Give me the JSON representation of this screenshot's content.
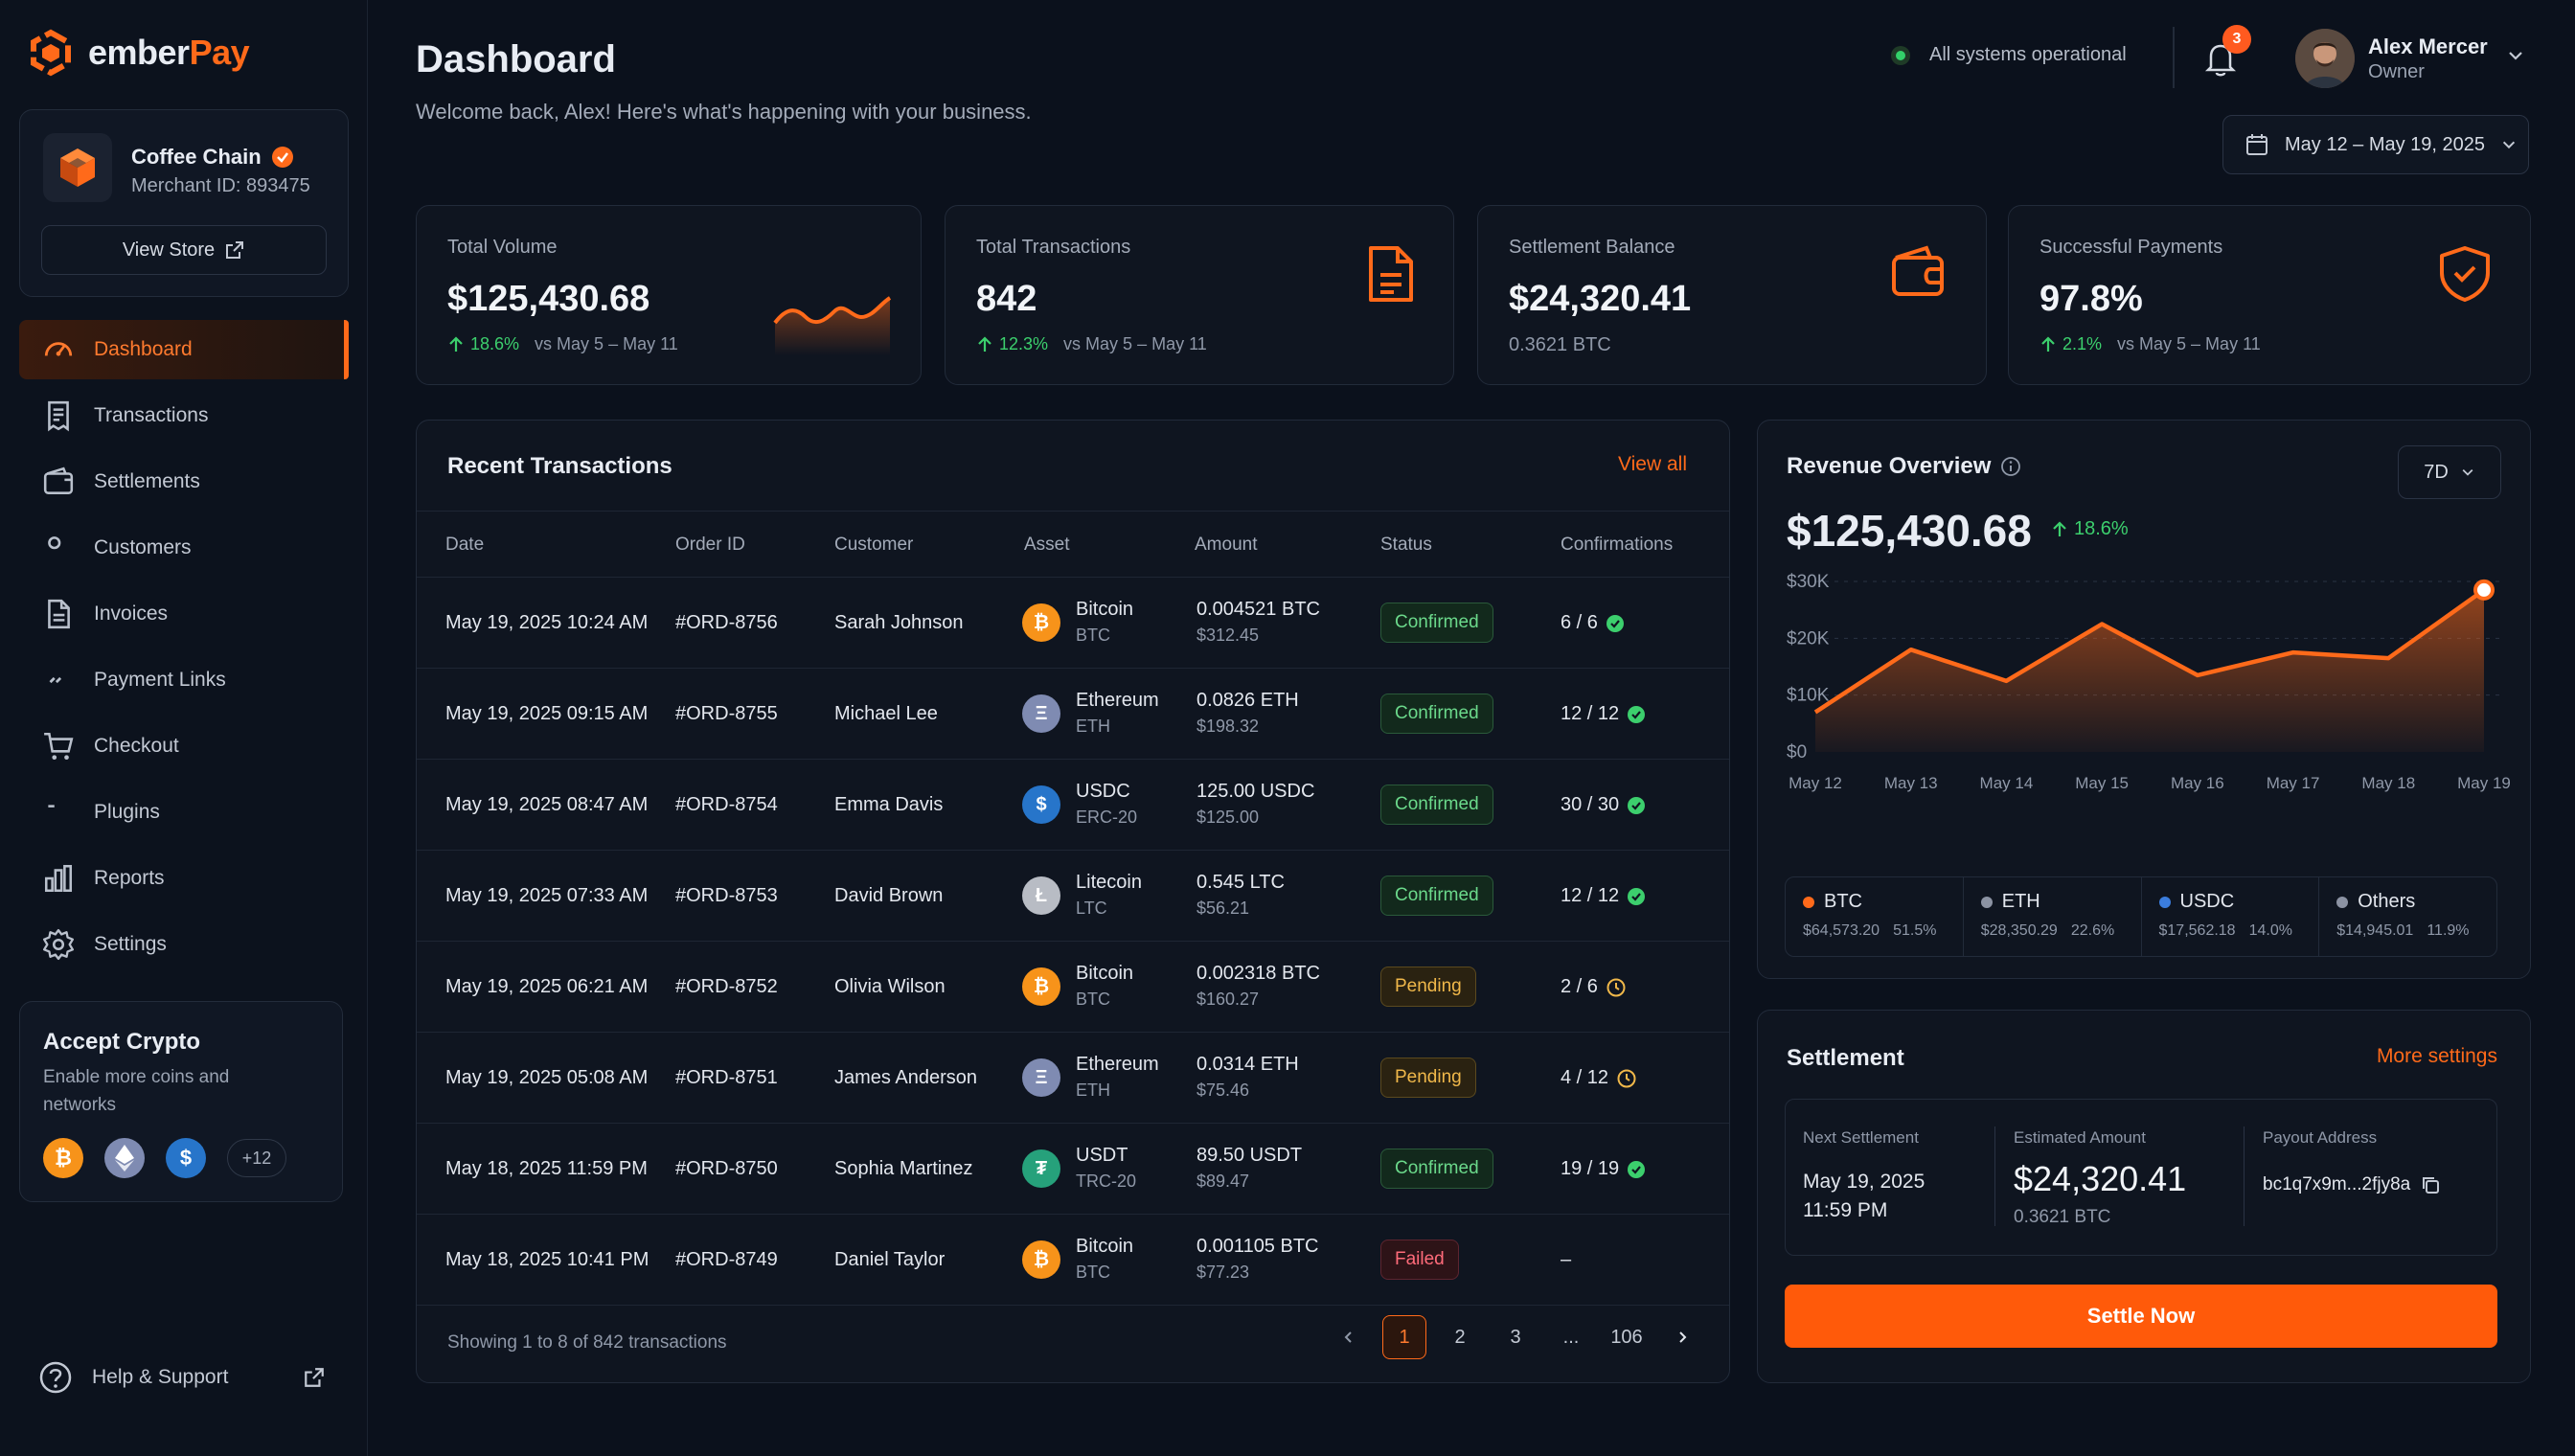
{
  "brand": {
    "name_part1": "ember",
    "name_part2": "Pay",
    "accent": "#ff6a1a"
  },
  "merchant": {
    "name": "Coffee Chain",
    "id_label": "Merchant ID: 893475",
    "view_store": "View Store"
  },
  "nav": [
    {
      "label": "Dashboard",
      "icon": "gauge-icon",
      "active": true
    },
    {
      "label": "Transactions",
      "icon": "receipt-icon"
    },
    {
      "label": "Settlements",
      "icon": "wallet-icon"
    },
    {
      "label": "Customers",
      "icon": "users-icon"
    },
    {
      "label": "Invoices",
      "icon": "file-icon"
    },
    {
      "label": "Payment Links",
      "icon": "link-icon"
    },
    {
      "label": "Checkout",
      "icon": "cart-icon"
    },
    {
      "label": "Plugins",
      "icon": "puzzle-icon"
    },
    {
      "label": "Reports",
      "icon": "bar-chart-icon"
    },
    {
      "label": "Settings",
      "icon": "gear-icon"
    }
  ],
  "accept_crypto": {
    "title": "Accept Crypto",
    "subtitle": "Enable more coins and networks",
    "more": "+12"
  },
  "help": {
    "label": "Help & Support"
  },
  "header": {
    "title": "Dashboard",
    "welcome": "Welcome back, Alex! Here's what's happening with your business.",
    "system_status": "All systems operational",
    "notifications": "3",
    "user_name": "Alex Mercer",
    "user_role": "Owner",
    "date_range": "May 12 – May 19, 2025"
  },
  "stats": {
    "volume": {
      "label": "Total Volume",
      "value": "$125,430.68",
      "delta": "18.6%",
      "vs": "vs May 5 – May 11"
    },
    "transactions": {
      "label": "Total Transactions",
      "value": "842",
      "delta": "12.3%",
      "vs": "vs May 5 – May 11"
    },
    "settlement": {
      "label": "Settlement Balance",
      "value": "$24,320.41",
      "sub": "0.3621 BTC"
    },
    "success": {
      "label": "Successful Payments",
      "value": "97.8%",
      "delta": "2.1%",
      "vs": "vs May 5 – May 11"
    }
  },
  "transactions": {
    "title": "Recent Transactions",
    "view_all": "View all",
    "columns": [
      "Date",
      "Order ID",
      "Customer",
      "Asset",
      "Amount",
      "Status",
      "Confirmations"
    ],
    "rows": [
      {
        "date": "May 19, 2025 10:24 AM",
        "order": "#ORD-8756",
        "customer": "Sarah Johnson",
        "asset": "Bitcoin",
        "symbol": "BTC",
        "coin": "btc",
        "amount": "0.004521 BTC",
        "usd": "$312.45",
        "status": "Confirmed",
        "conf": "6 / 6",
        "state": "ok"
      },
      {
        "date": "May 19, 2025 09:15 AM",
        "order": "#ORD-8755",
        "customer": "Michael Lee",
        "asset": "Ethereum",
        "symbol": "ETH",
        "coin": "eth",
        "amount": "0.0826 ETH",
        "usd": "$198.32",
        "status": "Confirmed",
        "conf": "12 / 12",
        "state": "ok"
      },
      {
        "date": "May 19, 2025 08:47 AM",
        "order": "#ORD-8754",
        "customer": "Emma Davis",
        "asset": "USDC",
        "symbol": "ERC-20",
        "coin": "usdc",
        "amount": "125.00 USDC",
        "usd": "$125.00",
        "status": "Confirmed",
        "conf": "30 / 30",
        "state": "ok"
      },
      {
        "date": "May 19, 2025 07:33 AM",
        "order": "#ORD-8753",
        "customer": "David Brown",
        "asset": "Litecoin",
        "symbol": "LTC",
        "coin": "ltc",
        "amount": "0.545 LTC",
        "usd": "$56.21",
        "status": "Confirmed",
        "conf": "12 / 12",
        "state": "ok"
      },
      {
        "date": "May 19, 2025 06:21 AM",
        "order": "#ORD-8752",
        "customer": "Olivia Wilson",
        "asset": "Bitcoin",
        "symbol": "BTC",
        "coin": "btc",
        "amount": "0.002318 BTC",
        "usd": "$160.27",
        "status": "Pending",
        "conf": "2 / 6",
        "state": "pending"
      },
      {
        "date": "May 19, 2025 05:08 AM",
        "order": "#ORD-8751",
        "customer": "James Anderson",
        "asset": "Ethereum",
        "symbol": "ETH",
        "coin": "eth",
        "amount": "0.0314 ETH",
        "usd": "$75.46",
        "status": "Pending",
        "conf": "4 / 12",
        "state": "pending"
      },
      {
        "date": "May 18, 2025 11:59 PM",
        "order": "#ORD-8750",
        "customer": "Sophia Martinez",
        "asset": "USDT",
        "symbol": "TRC-20",
        "coin": "usdt",
        "amount": "89.50 USDT",
        "usd": "$89.47",
        "status": "Confirmed",
        "conf": "19 / 19",
        "state": "ok"
      },
      {
        "date": "May 18, 2025 10:41 PM",
        "order": "#ORD-8749",
        "customer": "Daniel Taylor",
        "asset": "Bitcoin",
        "symbol": "BTC",
        "coin": "btc",
        "amount": "0.001105 BTC",
        "usd": "$77.23",
        "status": "Failed",
        "conf": "–",
        "state": "failed"
      }
    ],
    "footer": "Showing 1 to 8 of 842 transactions",
    "pages": [
      "1",
      "2",
      "3",
      "...",
      "106"
    ]
  },
  "revenue": {
    "title": "Revenue Overview",
    "period": "7D",
    "value": "$125,430.68",
    "delta": "18.6%",
    "legend": [
      {
        "name": "BTC",
        "amount": "$64,573.20",
        "pct": "51.5%",
        "color": "#ff6a1a"
      },
      {
        "name": "ETH",
        "amount": "$28,350.29",
        "pct": "22.6%",
        "color": "#8c93a3"
      },
      {
        "name": "USDC",
        "amount": "$17,562.18",
        "pct": "14.0%",
        "color": "#3b7ddd"
      },
      {
        "name": "Others",
        "amount": "$14,945.01",
        "pct": "11.9%",
        "color": "#8c93a3"
      }
    ]
  },
  "chart_data": {
    "type": "area",
    "x": [
      "May 12",
      "May 13",
      "May 14",
      "May 15",
      "May 16",
      "May 17",
      "May 18",
      "May 19"
    ],
    "values": [
      7000,
      18000,
      12500,
      22500,
      13500,
      17500,
      16500,
      28500
    ],
    "yticks": [
      "$0",
      "$10K",
      "$20K",
      "$30K"
    ],
    "ylim": [
      0,
      30000
    ],
    "grid": true
  },
  "settlement": {
    "title": "Settlement",
    "more": "More settings",
    "next_label": "Next Settlement",
    "next_date": "May 19, 2025",
    "next_time": "11:59 PM",
    "est_label": "Estimated Amount",
    "est_value": "$24,320.41",
    "est_sub": "0.3621 BTC",
    "addr_label": "Payout Address",
    "addr": "bc1q7x9m...2fjy8a",
    "button": "Settle Now"
  }
}
